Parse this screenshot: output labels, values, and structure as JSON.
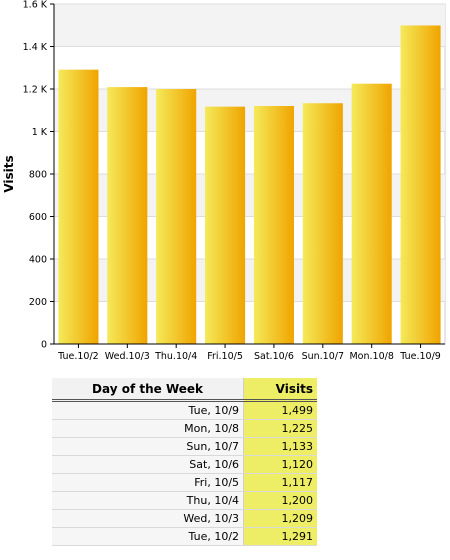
{
  "chart_data": {
    "type": "bar",
    "categories": [
      "Tue.10/2",
      "Wed.10/3",
      "Thu.10/4",
      "Fri.10/5",
      "Sat.10/6",
      "Sun.10/7",
      "Mon.10/8",
      "Tue.10/9"
    ],
    "values": [
      1291,
      1209,
      1200,
      1117,
      1120,
      1133,
      1225,
      1499
    ],
    "title": "",
    "xlabel": "",
    "ylabel": "Visits",
    "ylim": [
      0,
      1600
    ],
    "yticks": [
      0,
      200,
      400,
      600,
      800,
      1000,
      1200,
      1400,
      1600
    ],
    "ytick_labels": [
      "0",
      "200",
      "400",
      "600",
      "800",
      "1 K",
      "1.2 K",
      "1.4 K",
      "1.6 K"
    ],
    "grid": true,
    "bar_color_light": "#f4ea5a",
    "bar_color_dark": "#f0a400"
  },
  "table": {
    "headers": {
      "day": "Day of the Week",
      "visits": "Visits"
    },
    "rows": [
      {
        "day": "Tue, 10/9",
        "visits": "1,499"
      },
      {
        "day": "Mon, 10/8",
        "visits": "1,225"
      },
      {
        "day": "Sun, 10/7",
        "visits": "1,133"
      },
      {
        "day": "Sat, 10/6",
        "visits": "1,120"
      },
      {
        "day": "Fri, 10/5",
        "visits": "1,117"
      },
      {
        "day": "Thu, 10/4",
        "visits": "1,200"
      },
      {
        "day": "Wed, 10/3",
        "visits": "1,209"
      },
      {
        "day": "Tue, 10/2",
        "visits": "1,291"
      }
    ]
  }
}
